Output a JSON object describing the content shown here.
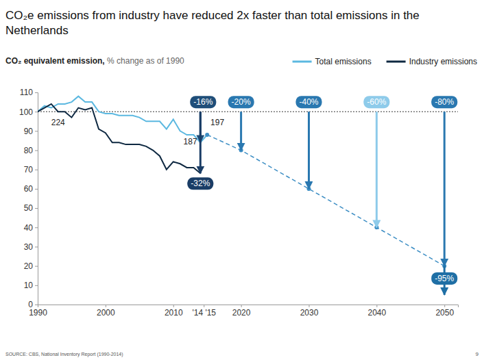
{
  "chart_data": {
    "type": "line",
    "title": "CO₂e emissions from industry have reduced 2x faster than total emissions in the Netherlands",
    "subtitle": "CO₂ equivalent emission, % change as of 1990",
    "source": "SOURCE: CBS, National Inventory Report (1990-2014)",
    "page_number": "9",
    "legend": "top-right",
    "grid": false,
    "x": [
      1990,
      1991,
      1992,
      1993,
      1994,
      1995,
      1996,
      1997,
      1998,
      1999,
      2000,
      2001,
      2002,
      2003,
      2004,
      2005,
      2006,
      2007,
      2008,
      2009,
      2010,
      2011,
      2012,
      2013,
      2014,
      2015
    ],
    "series": [
      {
        "name": "Total emissions",
        "color": "#5bb8e0",
        "values": [
          100,
          103,
          102,
          104,
          104,
          105,
          108,
          105,
          105,
          100,
          99,
          99,
          98,
          98,
          98,
          97,
          95,
          95,
          95,
          91,
          96,
          90,
          88,
          88,
          84,
          88
        ]
      },
      {
        "name": "Industry emissions",
        "color": "#0e2841",
        "values": [
          100,
          102,
          104,
          100,
          100,
          97,
          102,
          101,
          102,
          91,
          89,
          84,
          84,
          83,
          83,
          83,
          82,
          80,
          77,
          70,
          74,
          73,
          71,
          71,
          68,
          null
        ]
      },
      {
        "color": "#3d8ec4",
        "line_style": "dashed",
        "marker": "circle",
        "x": [
          2015,
          2020,
          2030,
          2040,
          2050
        ],
        "values": [
          88,
          80,
          60,
          40,
          20
        ]
      }
    ],
    "reference": 100,
    "annotations": [
      {
        "x": 2014,
        "from": 100,
        "to": 84,
        "label": "-16%",
        "color": "#1f4e79",
        "label_position": "top"
      },
      {
        "x": 2014,
        "from": 100,
        "to": 68,
        "label": "-32%",
        "color": "#1a3d66",
        "label_position": "below"
      },
      {
        "x": 2020,
        "from": 100,
        "to": 80,
        "label": "-20%",
        "color": "#2a78b0",
        "label_position": "top"
      },
      {
        "x": 2030,
        "from": 100,
        "to": 60,
        "label": "-40%",
        "color": "#2a78b0",
        "label_position": "top"
      },
      {
        "x": 2040,
        "from": 100,
        "to": 40,
        "label": "-60%",
        "color": "#8ecbea",
        "label_position": "top"
      },
      {
        "x": 2050,
        "from": 100,
        "to": 20,
        "label": "-80%",
        "color": "#2a78b0",
        "label_position": "top"
      },
      {
        "x": 2050,
        "from": 20,
        "to": 5,
        "label": "-95%",
        "color": "#1f6fa5",
        "label_position": "above"
      }
    ],
    "notes": [
      {
        "x": 1992,
        "y": 93,
        "label": "224"
      },
      {
        "x": 2015.5,
        "y": 93,
        "label": "197"
      },
      {
        "x": 2011.5,
        "y": 83,
        "label": "187"
      }
    ],
    "xlim": [
      1990,
      2052
    ],
    "xticks": [
      1990,
      2000,
      2010,
      {
        "value": 2014.5,
        "label": "'14 '15"
      },
      2020,
      2030,
      2040,
      2050
    ],
    "ylim": [
      0,
      110
    ],
    "yticks": [
      0,
      10,
      20,
      30,
      40,
      50,
      60,
      70,
      80,
      90,
      100,
      110
    ]
  }
}
